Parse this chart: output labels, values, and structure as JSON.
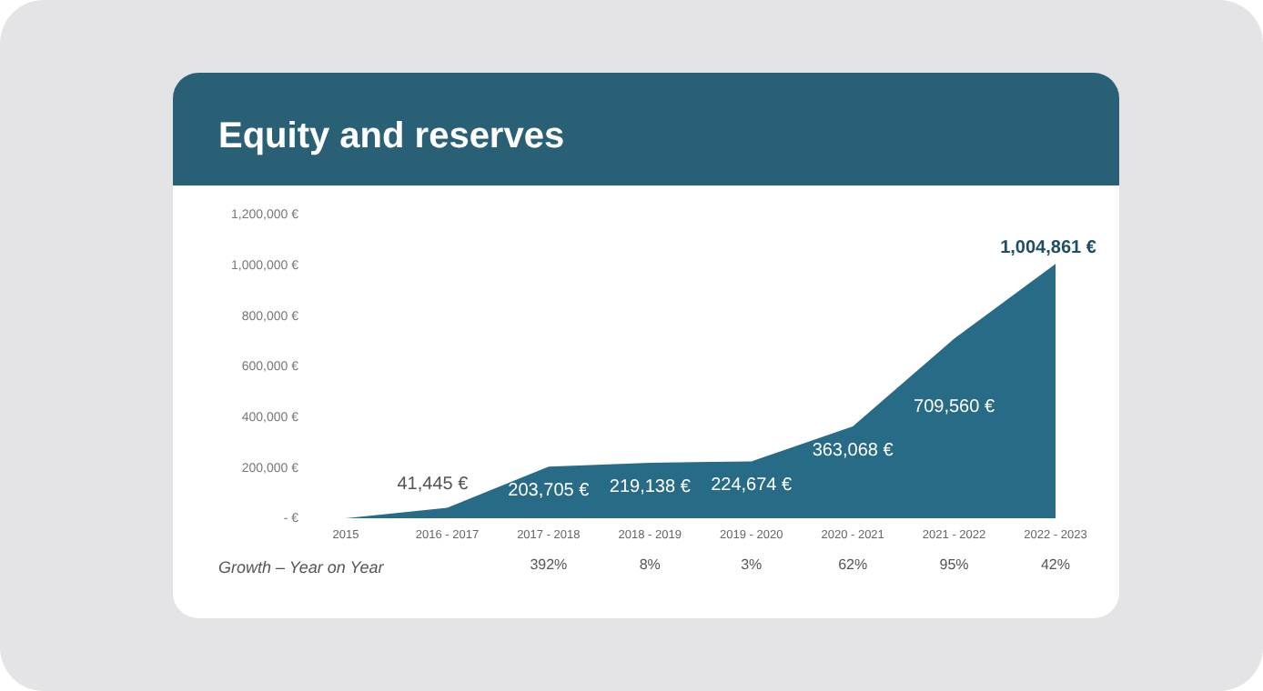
{
  "chart_data": {
    "type": "area",
    "title": "Equity and reserves",
    "categories": [
      "2015",
      "2016 - 2017",
      "2017 - 2018",
      "2018 - 2019",
      "2019 - 2020",
      "2020 - 2021",
      "2021 - 2022",
      "2022 - 2023"
    ],
    "values": [
      0,
      41445,
      203705,
      219138,
      224674,
      363068,
      709560,
      1004861
    ],
    "value_labels": [
      null,
      "41,445 €",
      "203,705 €",
      "219,138 €",
      "224,674 €",
      "363,068 €",
      "709,560 €",
      "1,004,861 €"
    ],
    "color": "#276b86",
    "ylim": [
      0,
      1200000
    ],
    "yticks": [
      {
        "value": 0,
        "label": "- €"
      },
      {
        "value": 200000,
        "label": "200,000 €"
      },
      {
        "value": 400000,
        "label": "400,000 €"
      },
      {
        "value": 600000,
        "label": "600,000 €"
      },
      {
        "value": 800000,
        "label": "800,000 €"
      },
      {
        "value": 1000000,
        "label": "1,000,000 €"
      },
      {
        "value": 1200000,
        "label": "1,200,000 €"
      }
    ],
    "grid": false,
    "annotations": [
      "Growth – Year on Year",
      "392%",
      "8%",
      "3%",
      "62%",
      "95%",
      "42%"
    ]
  }
}
